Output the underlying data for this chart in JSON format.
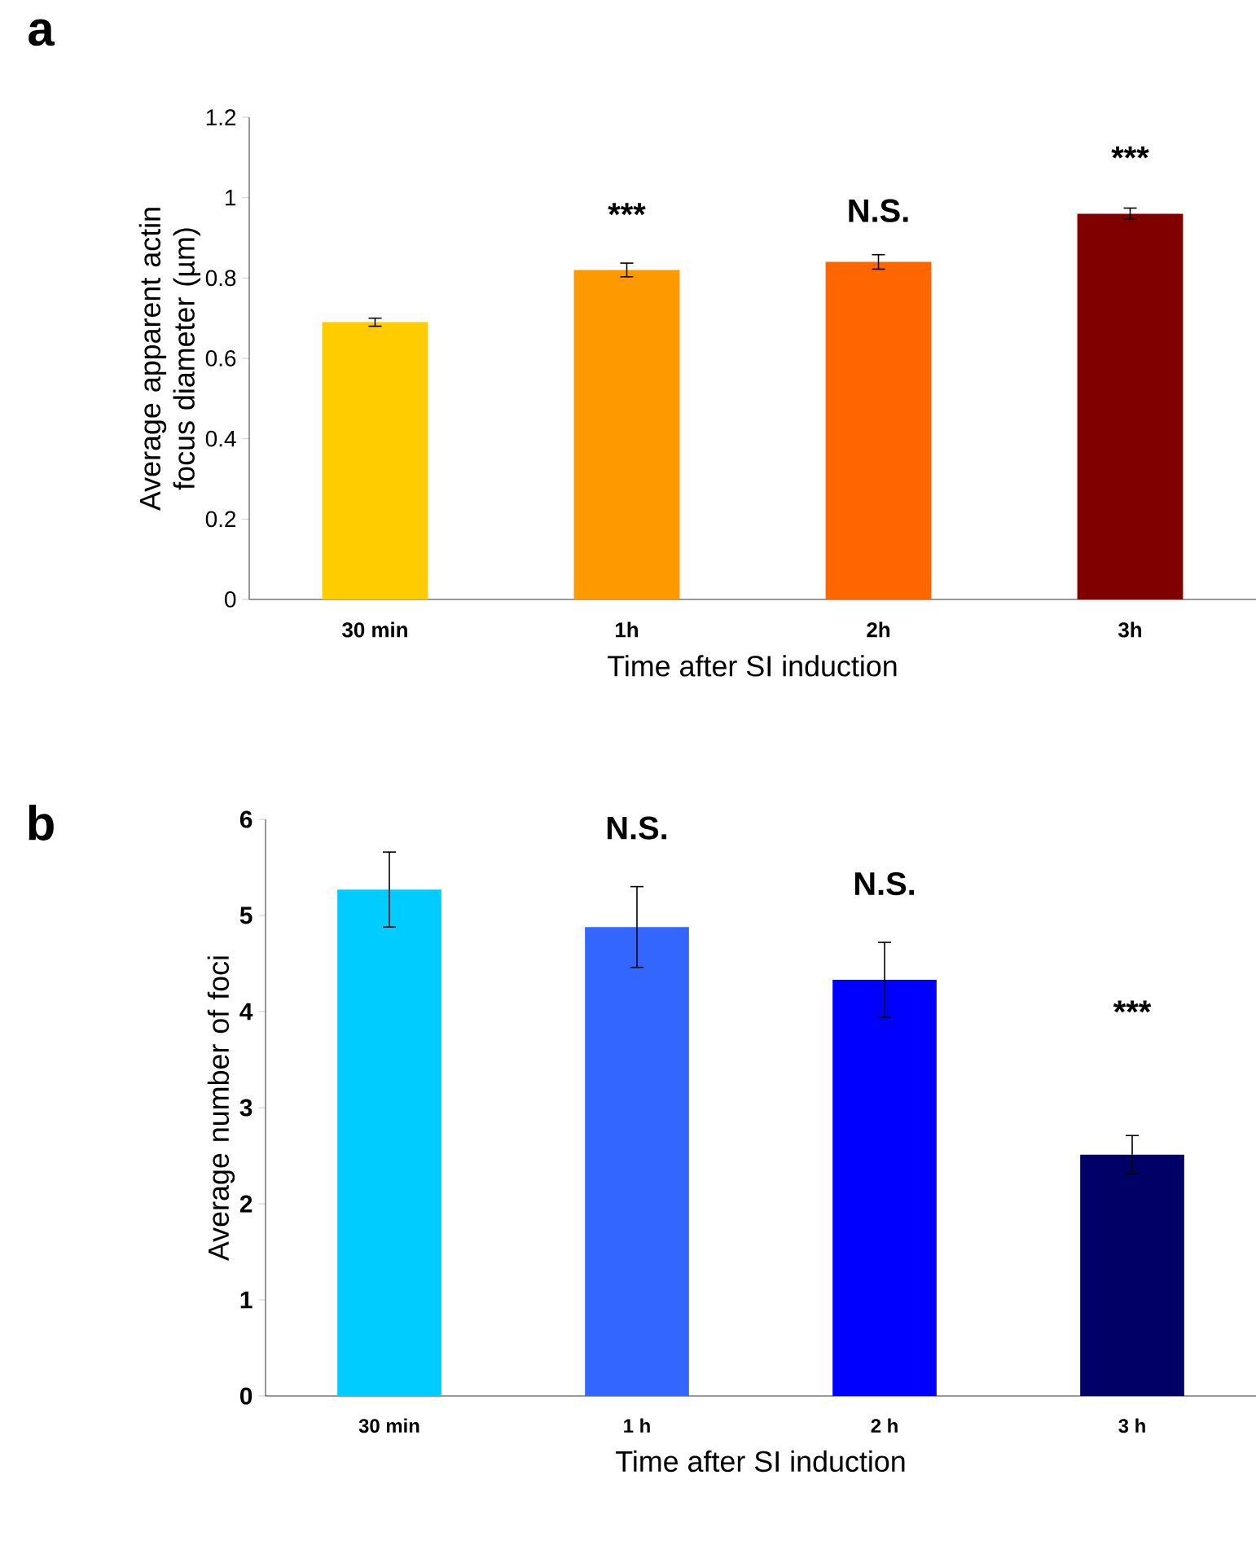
{
  "chart_data": [
    {
      "type": "bar",
      "categories": [
        "30 min",
        "1h",
        "2h",
        "3h"
      ],
      "values": [
        0.69,
        0.82,
        0.84,
        0.96
      ],
      "errors": [
        0.01,
        0.017,
        0.018,
        0.014
      ],
      "colors": [
        "#ffcc00",
        "#ff9900",
        "#ff6600",
        "#800000"
      ],
      "xlabel": "Time after SI induction",
      "ylabel": "Average apparent actin focus diameter (µm)",
      "ylim": [
        0,
        1.2
      ],
      "yticks": [
        0,
        0.2,
        0.4,
        0.6,
        0.8,
        1,
        1.2
      ],
      "annotations": [
        "a",
        "***",
        "N.S.",
        "***"
      ]
    },
    {
      "type": "bar",
      "categories": [
        "30 min",
        "1 h",
        "2 h",
        "3 h"
      ],
      "values": [
        5.27,
        4.88,
        4.33,
        2.51
      ],
      "errors": [
        0.39,
        0.42,
        0.39,
        0.2
      ],
      "colors": [
        "#00ccff",
        "#3366ff",
        "#0000ff",
        "#000066"
      ],
      "xlabel": "Time after SI induction",
      "ylabel": "Average number of foci",
      "ylim": [
        0,
        6
      ],
      "yticks": [
        0,
        1,
        2,
        3,
        4,
        5,
        6
      ],
      "annotations": [
        "b",
        "N.S.",
        "N.S.",
        "***"
      ]
    }
  ]
}
